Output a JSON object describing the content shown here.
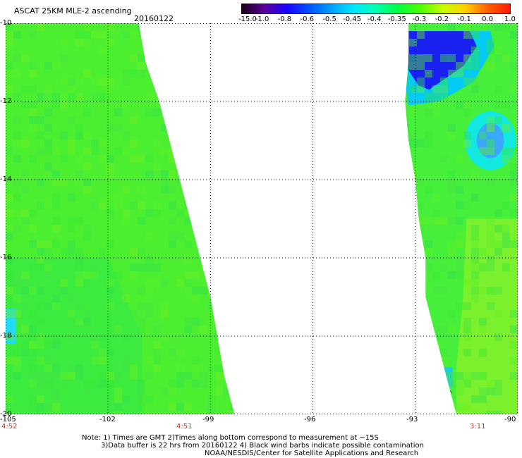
{
  "header": {
    "title": "ASCAT 25KM MLE-2 ascending",
    "date": "20160122"
  },
  "colorbar": {
    "labels": [
      "-15.0",
      "-1.0",
      "-0.8",
      "-0.6",
      "-0.5",
      "-0.45",
      "-0.4",
      "-0.35",
      "-0.3",
      "-0.2",
      "-0.1",
      "0.0",
      "1.0"
    ],
    "colors": [
      "#1a001a",
      "#5a0099",
      "#1a00ff",
      "#0050ff",
      "#00a0ff",
      "#00e8ff",
      "#00ffb0",
      "#00ff40",
      "#50ff00",
      "#c8ff00",
      "#ffd000",
      "#ff6000",
      "#ff1a00"
    ]
  },
  "axes": {
    "lat_labels": [
      "-10",
      "-12",
      "-14",
      "-16",
      "-18",
      "-20"
    ],
    "lon_labels": [
      "-105",
      "-102",
      "-99",
      "-96",
      "-93",
      "-90"
    ],
    "time_labels": [
      "4:52",
      "4:51",
      "3:11"
    ]
  },
  "map": {
    "lon_range": [
      -105,
      -90
    ],
    "lat_range": [
      -20,
      -10
    ],
    "grid": true,
    "swaths": [
      {
        "name": "west-swath",
        "fill": "#4cef30",
        "edge_lon_lat": [
          [
            -105,
            -10
          ],
          [
            -101.1,
            -10
          ],
          [
            -100.9,
            -11
          ],
          [
            -100.5,
            -12
          ],
          [
            -100.2,
            -13
          ],
          [
            -99.9,
            -14
          ],
          [
            -99.6,
            -15
          ],
          [
            -99.3,
            -16
          ],
          [
            -99,
            -17
          ],
          [
            -98.8,
            -18
          ],
          [
            -98.6,
            -19
          ],
          [
            -98.3,
            -20
          ],
          [
            -105,
            -20
          ]
        ]
      },
      {
        "name": "east-swath",
        "fill": "#46ef3a",
        "edge_lon_lat": [
          [
            -93.2,
            -10
          ],
          [
            -90,
            -10
          ],
          [
            -90,
            -20
          ],
          [
            -91.8,
            -20
          ],
          [
            -92.1,
            -19
          ],
          [
            -92.4,
            -18
          ],
          [
            -92.7,
            -17
          ],
          [
            -92.7,
            -16
          ],
          [
            -92.9,
            -15
          ],
          [
            -93,
            -14
          ],
          [
            -93.2,
            -13
          ],
          [
            -93.3,
            -12
          ],
          [
            -93.2,
            -11
          ]
        ]
      }
    ],
    "features": [
      {
        "name": "low-value-patch",
        "color": "#1a18f0",
        "poly_lon_lat": [
          [
            -93.2,
            -10.2
          ],
          [
            -91.4,
            -10.2
          ],
          [
            -91.2,
            -10.6
          ],
          [
            -91.6,
            -11.1
          ],
          [
            -92.1,
            -11.4
          ],
          [
            -92.6,
            -11.7
          ],
          [
            -92.9,
            -11.6
          ],
          [
            -93.2,
            -11.2
          ]
        ]
      },
      {
        "name": "low-value-halo",
        "color": "#00c8ff",
        "poly_lon_lat": [
          [
            -93.3,
            -10.2
          ],
          [
            -90.8,
            -10.2
          ],
          [
            -90.7,
            -10.6
          ],
          [
            -91.3,
            -11.5
          ],
          [
            -92.3,
            -12.0
          ],
          [
            -93.2,
            -12.1
          ],
          [
            -93.3,
            -11.5
          ]
        ]
      },
      {
        "name": "mid-spot",
        "color": "#3aa8ff",
        "ellipse_lon_lat": [
          -90.8,
          -13.0,
          0.4,
          0.45
        ]
      },
      {
        "name": "mid-spot-halo",
        "color": "#10e8e0",
        "ellipse_lon_lat": [
          -90.8,
          -13.0,
          0.75,
          0.75
        ]
      },
      {
        "name": "west-edge-spot",
        "color": "#20d8ff",
        "poly_lon_lat": [
          [
            -105,
            -17.3
          ],
          [
            -104.7,
            -17.3
          ],
          [
            -104.7,
            -18.2
          ],
          [
            -105,
            -18.2
          ]
        ]
      },
      {
        "name": "east-edge-spot",
        "color": "#18c8f0",
        "poly_lon_lat": [
          [
            -92.2,
            -18.8
          ],
          [
            -91.9,
            -18.8
          ],
          [
            -91.9,
            -19.3
          ],
          [
            -92.2,
            -19.3
          ]
        ]
      },
      {
        "name": "east-dark-spot",
        "color": "#1010e0",
        "poly_lon_lat": [
          [
            -92.2,
            -19.4
          ],
          [
            -91.95,
            -19.4
          ],
          [
            -91.95,
            -19.55
          ],
          [
            -92.2,
            -19.55
          ]
        ]
      },
      {
        "name": "yellow-edge-band",
        "color": "#a8f020",
        "poly_lon_lat": [
          [
            -91.5,
            -15.0
          ],
          [
            -90,
            -15.0
          ],
          [
            -90,
            -20
          ],
          [
            -91.8,
            -20
          ],
          [
            -91.8,
            -18.8
          ],
          [
            -91.6,
            -17.0
          ]
        ]
      },
      {
        "name": "green-core-west",
        "color": "#2ee84a",
        "poly_lon_lat": [
          [
            -105,
            -16
          ],
          [
            -102,
            -16
          ],
          [
            -101,
            -18
          ],
          [
            -101,
            -20
          ],
          [
            -105,
            -20
          ]
        ]
      }
    ]
  },
  "notes": [
    "Note: 1) Times are GMT 2)Times along bottom correspond to measurement at ~15S",
    "3)Data buffer is 22 hrs from 20160122 4) Black wind barbs indicate possible contamination",
    "NOAA/NESDIS/Center for Satellite Applications and Research"
  ]
}
